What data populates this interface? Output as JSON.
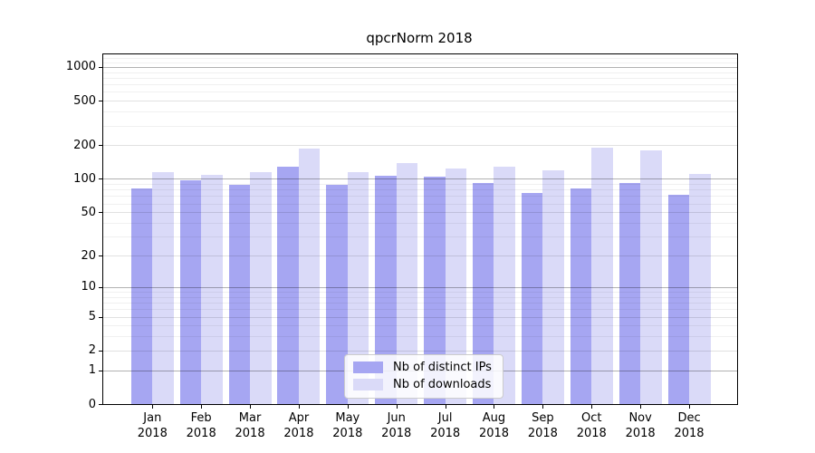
{
  "title": "qpcrNorm 2018",
  "chart_data": {
    "type": "bar",
    "title": "qpcrNorm 2018",
    "categories": [
      "Jan",
      "Feb",
      "Mar",
      "Apr",
      "May",
      "Jun",
      "Jul",
      "Aug",
      "Sep",
      "Oct",
      "Nov",
      "Dec"
    ],
    "year": "2018",
    "series": [
      {
        "key": "ips",
        "name": "Nb of distinct IPs",
        "color": "#a6a6f2",
        "values": [
          82,
          97,
          88,
          128,
          88,
          107,
          105,
          92,
          75,
          82,
          92,
          72
        ]
      },
      {
        "key": "downloads",
        "name": "Nb of downloads",
        "color": "#dadaf8",
        "values": [
          114,
          109,
          114,
          188,
          115,
          138,
          124,
          128,
          119,
          190,
          180,
          111
        ]
      }
    ],
    "y_ticks": [
      0,
      1,
      2,
      5,
      10,
      20,
      50,
      100,
      200,
      500,
      1000
    ],
    "y_major_gridlines": [
      1,
      10,
      100,
      1000
    ],
    "y_scale": "log10(1+x)",
    "xlabel": "",
    "ylabel": "",
    "grid": true,
    "legend_position": "bottom-center"
  }
}
